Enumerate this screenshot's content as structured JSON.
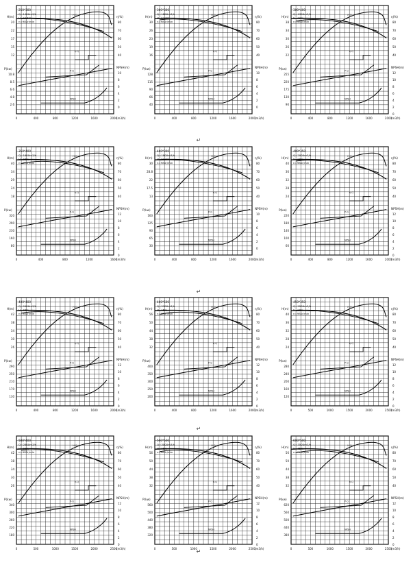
{
  "page": {
    "paragraph_marks": [
      "↵",
      "↵",
      "↵",
      "↵"
    ]
  },
  "chart_data": [
    {
      "type": "line",
      "model": "250*300",
      "specs": [
        "Q=1400m3/h",
        "H=22.5m",
        "n=980r/min"
      ],
      "x_ticks": [
        "0",
        "400",
        "800",
        "1200",
        "1600",
        "2000"
      ],
      "x_unit": "(m3/h)",
      "upper_left_label": "H(m)",
      "upper_left_ticks": [
        "20",
        "22",
        "17",
        "15",
        "12"
      ],
      "upper_right_label": "η(%)",
      "upper_right_ticks": [
        "80",
        "70",
        "60",
        "50",
        "40"
      ],
      "lower_left_label": "P(kw)",
      "lower_left_ticks": [
        "10.8",
        "8.5",
        "6.6",
        "4.8",
        "2.6"
      ],
      "lower_right_label": "NPSH(m)",
      "lower_right_ticks": [
        "10",
        "8",
        "6",
        "4",
        "2",
        "0"
      ],
      "curve_labels": [
        "H-Q",
        "η-Q",
        "P-Q",
        "NPSH"
      ]
    },
    {
      "type": "line",
      "model": "300*300",
      "specs": [
        "Q=1800m3/h",
        "H=24.5m",
        "n=980r/min"
      ],
      "x_ticks": [
        "0",
        "400",
        "800",
        "1200",
        "1600",
        "2000"
      ],
      "x_unit": "(m3/h)",
      "upper_left_label": "H(m)",
      "upper_left_ticks": [
        "30",
        "26",
        "23",
        "19",
        "16"
      ],
      "upper_right_label": "η(%)",
      "upper_right_ticks": [
        "80",
        "70",
        "60",
        "50",
        "40"
      ],
      "lower_left_label": "P(kw)",
      "lower_left_ticks": [
        "128",
        "115",
        "90",
        "66",
        "40"
      ],
      "lower_right_label": "NPSH(m)",
      "lower_right_ticks": [
        "10",
        "8",
        "6",
        "4",
        "2",
        "0"
      ],
      "curve_labels": [
        "H-Q",
        "η-Q",
        "P-Q",
        "NPSH"
      ]
    },
    {
      "type": "line",
      "model": "300*400",
      "specs": [
        "Q=1300m3/h",
        "H=32m",
        "n=980r/min"
      ],
      "x_ticks": [
        "0",
        "400",
        "800",
        "1200",
        "1600",
        "2000"
      ],
      "x_unit": "(m3/h)",
      "upper_left_label": "H(m)",
      "upper_left_ticks": [
        "38",
        "34",
        "30",
        "26",
        "22"
      ],
      "upper_right_label": "η(%)",
      "upper_right_ticks": [
        "80",
        "70",
        "60",
        "50",
        "40"
      ],
      "lower_left_label": "P(kw)",
      "lower_left_ticks": [
        "255",
        "220",
        "175",
        "130",
        "90"
      ],
      "lower_right_label": "NPSH(m)",
      "lower_right_ticks": [
        "12",
        "10",
        "8",
        "6",
        "4",
        "2",
        "0"
      ],
      "curve_labels": [
        "H-Q",
        "η-Q",
        "P-Q",
        "NPSH"
      ]
    },
    {
      "type": "line",
      "model": "350*400",
      "specs": [
        "Q=1600m3/h",
        "H=38m",
        "n=980r/min"
      ],
      "x_ticks": [
        "0",
        "400",
        "800",
        "1200",
        "1600"
      ],
      "x_unit": "(m3/h)",
      "upper_left_label": "H(m)",
      "upper_left_ticks": [
        "40",
        "34",
        "29",
        "24",
        "18"
      ],
      "upper_right_label": "η(%)",
      "upper_right_ticks": [
        "80",
        "70",
        "60",
        "50",
        "40"
      ],
      "lower_left_label": "P(kw)",
      "lower_left_ticks": [
        "320",
        "290",
        "230",
        "160",
        "80"
      ],
      "lower_right_label": "NPSH(m)",
      "lower_right_ticks": [
        "12",
        "10",
        "8",
        "6",
        "4",
        "2",
        "0"
      ],
      "curve_labels": [
        "H-Q",
        "η-Q",
        "P-Q",
        "NPSH"
      ]
    },
    {
      "type": "line",
      "model": "400*300",
      "specs": [
        "Q=1800m3/h",
        "H=22.5m",
        "n=980r/min"
      ],
      "x_ticks": [
        "0",
        "400",
        "800",
        "1200",
        "1600",
        "2000"
      ],
      "x_unit": "(m3/h)",
      "upper_left_label": "H(m)",
      "upper_left_ticks": [
        "30",
        "28.8",
        "22",
        "17.5",
        "13"
      ],
      "upper_right_label": "η(%)",
      "upper_right_ticks": [
        "80",
        "70",
        "60",
        "50",
        "40"
      ],
      "lower_left_label": "P(kw)",
      "lower_left_ticks": [
        "160",
        "125",
        "90",
        "65",
        "30"
      ],
      "lower_right_label": "NPSH(m)",
      "lower_right_ticks": [
        "10",
        "8",
        "6",
        "4",
        "2",
        "0"
      ],
      "curve_labels": [
        "H-Q",
        "η-Q",
        "P-Q",
        "NPSH"
      ]
    },
    {
      "type": "line",
      "model": "400*350",
      "specs": [
        "Q=2000m3/h",
        "H=28m",
        "n=980r/min"
      ],
      "x_ticks": [
        "0",
        "400",
        "800",
        "1200",
        "1600",
        "2000"
      ],
      "x_unit": "(m3/h)",
      "upper_left_label": "H(m)",
      "upper_left_ticks": [
        "40",
        "36",
        "32",
        "28",
        "24"
      ],
      "upper_right_label": "η(%)",
      "upper_right_ticks": [
        "80",
        "70",
        "60",
        "50",
        "40"
      ],
      "lower_left_label": "P(kw)",
      "lower_left_ticks": [
        "220",
        "180",
        "140",
        "100",
        "60"
      ],
      "lower_right_label": "NPSH(m)",
      "lower_right_ticks": [
        "12",
        "10",
        "8",
        "6",
        "4",
        "2",
        "0"
      ],
      "curve_labels": [
        "H-Q",
        "η-Q",
        "P-Q",
        "NPSH"
      ]
    },
    {
      "type": "line",
      "model": "400*400",
      "specs": [
        "Q=2000m3/h",
        "H=36m",
        "n=980r/min"
      ],
      "x_ticks": [
        "0",
        "400",
        "800",
        "1200",
        "1600",
        "2000"
      ],
      "x_unit": "(m3/h)",
      "upper_left_label": "H(m)",
      "upper_left_ticks": [
        "42",
        "38",
        "34",
        "30",
        "26"
      ],
      "upper_right_label": "η(%)",
      "upper_right_ticks": [
        "80",
        "70",
        "60",
        "50",
        "40"
      ],
      "lower_left_label": "P(kw)",
      "lower_left_ticks": [
        "290",
        "250",
        "210",
        "170",
        "130"
      ],
      "lower_right_label": "NPSH(m)",
      "lower_right_ticks": [
        "12",
        "10",
        "8",
        "6",
        "4",
        "2",
        "0"
      ],
      "curve_labels": [
        "H-Q",
        "η-Q",
        "P-Q",
        "NPSH"
      ]
    },
    {
      "type": "line",
      "model": "400*500",
      "specs": [
        "Q=2300m3/h",
        "H=45m",
        "n=980r/min"
      ],
      "x_ticks": [
        "0",
        "400",
        "800",
        "1200",
        "1600",
        "2000"
      ],
      "x_unit": "(m3/h)",
      "upper_left_label": "H(m)",
      "upper_left_ticks": [
        "56",
        "50",
        "44",
        "38",
        "32"
      ],
      "upper_right_label": "η(%)",
      "upper_right_ticks": [
        "80",
        "70",
        "60",
        "50",
        "40"
      ],
      "lower_left_label": "P(kw)",
      "lower_left_ticks": [
        "400",
        "350",
        "300",
        "250",
        "200"
      ],
      "lower_right_label": "NPSH(m)",
      "lower_right_ticks": [
        "12",
        "10",
        "8",
        "6",
        "4",
        "2",
        "0"
      ],
      "curve_labels": [
        "H-Q",
        "η-Q",
        "P-Q",
        "NPSH"
      ]
    },
    {
      "type": "line",
      "model": "450*350",
      "specs": [
        "Q=2500m3/h",
        "H=28m",
        "n=980r/min"
      ],
      "x_ticks": [
        "0",
        "500",
        "1000",
        "1500",
        "2000",
        "2500"
      ],
      "x_unit": "(m3/h)",
      "upper_left_label": "H(m)",
      "upper_left_ticks": [
        "40",
        "36",
        "32",
        "28",
        "24"
      ],
      "upper_right_label": "η(%)",
      "upper_right_ticks": [
        "80",
        "70",
        "60",
        "50",
        "40"
      ],
      "lower_left_label": "P(kw)",
      "lower_left_ticks": [
        "280",
        "240",
        "200",
        "160",
        "120"
      ],
      "lower_right_label": "NPSH(m)",
      "lower_right_ticks": [
        "12",
        "10",
        "8",
        "6",
        "4",
        "2",
        "0"
      ],
      "curve_labels": [
        "H-Q",
        "η-Q",
        "P-Q",
        "NPSH"
      ]
    },
    {
      "type": "line",
      "model": "500*400",
      "specs": [
        "Q=2800m3/h",
        "H=32m",
        "n=980r/min"
      ],
      "x_ticks": [
        "0",
        "500",
        "1000",
        "1500",
        "2000",
        "2500"
      ],
      "x_unit": "(m3/h)",
      "upper_left_label": "H(m)",
      "upper_left_ticks": [
        "42",
        "38",
        "34",
        "30",
        "26"
      ],
      "upper_right_label": "η(%)",
      "upper_right_ticks": [
        "80",
        "70",
        "60",
        "50",
        "40"
      ],
      "lower_left_label": "P(kw)",
      "lower_left_ticks": [
        "340",
        "300",
        "260",
        "220",
        "180"
      ],
      "lower_right_label": "NPSH(m)",
      "lower_right_ticks": [
        "12",
        "10",
        "8",
        "6",
        "4",
        "2",
        "0"
      ],
      "curve_labels": [
        "H-Q",
        "η-Q",
        "P-Q",
        "NPSH"
      ]
    },
    {
      "type": "line",
      "model": "500*500",
      "specs": [
        "Q=3000m3/h",
        "H=45m",
        "n=980r/min"
      ],
      "x_ticks": [
        "0",
        "500",
        "1000",
        "1500",
        "2000",
        "2500"
      ],
      "x_unit": "(m3/h)",
      "upper_left_label": "H(m)",
      "upper_left_ticks": [
        "56",
        "50",
        "44",
        "38",
        "32"
      ],
      "upper_right_label": "η(%)",
      "upper_right_ticks": [
        "80",
        "70",
        "60",
        "50",
        "40"
      ],
      "lower_left_label": "P(kw)",
      "lower_left_ticks": [
        "560",
        "500",
        "440",
        "380",
        "320"
      ],
      "lower_right_label": "NPSH(m)",
      "lower_right_ticks": [
        "12",
        "10",
        "8",
        "6",
        "4",
        "2",
        "0"
      ],
      "curve_labels": [
        "H-Q",
        "η-Q",
        "P-Q",
        "NPSH"
      ]
    },
    {
      "type": "line",
      "model": "600*500",
      "specs": [
        "Q=3500m3/h",
        "H=45m",
        "n=740r/min"
      ],
      "x_ticks": [
        "0",
        "500",
        "1000",
        "1500",
        "2000",
        "2500"
      ],
      "x_unit": "(m3/h)",
      "upper_left_label": "H(m)",
      "upper_left_ticks": [
        "56",
        "50",
        "44",
        "38",
        "32"
      ],
      "upper_right_label": "η(%)",
      "upper_right_ticks": [
        "80",
        "70",
        "60",
        "50",
        "40"
      ],
      "lower_left_label": "P(kw)",
      "lower_left_ticks": [
        "620",
        "560",
        "500",
        "440",
        "380"
      ],
      "lower_right_label": "NPSH(m)",
      "lower_right_ticks": [
        "12",
        "10",
        "8",
        "6",
        "4",
        "2",
        "0"
      ],
      "curve_labels": [
        "H-Q",
        "η-Q",
        "P-Q",
        "NPSH"
      ]
    }
  ]
}
